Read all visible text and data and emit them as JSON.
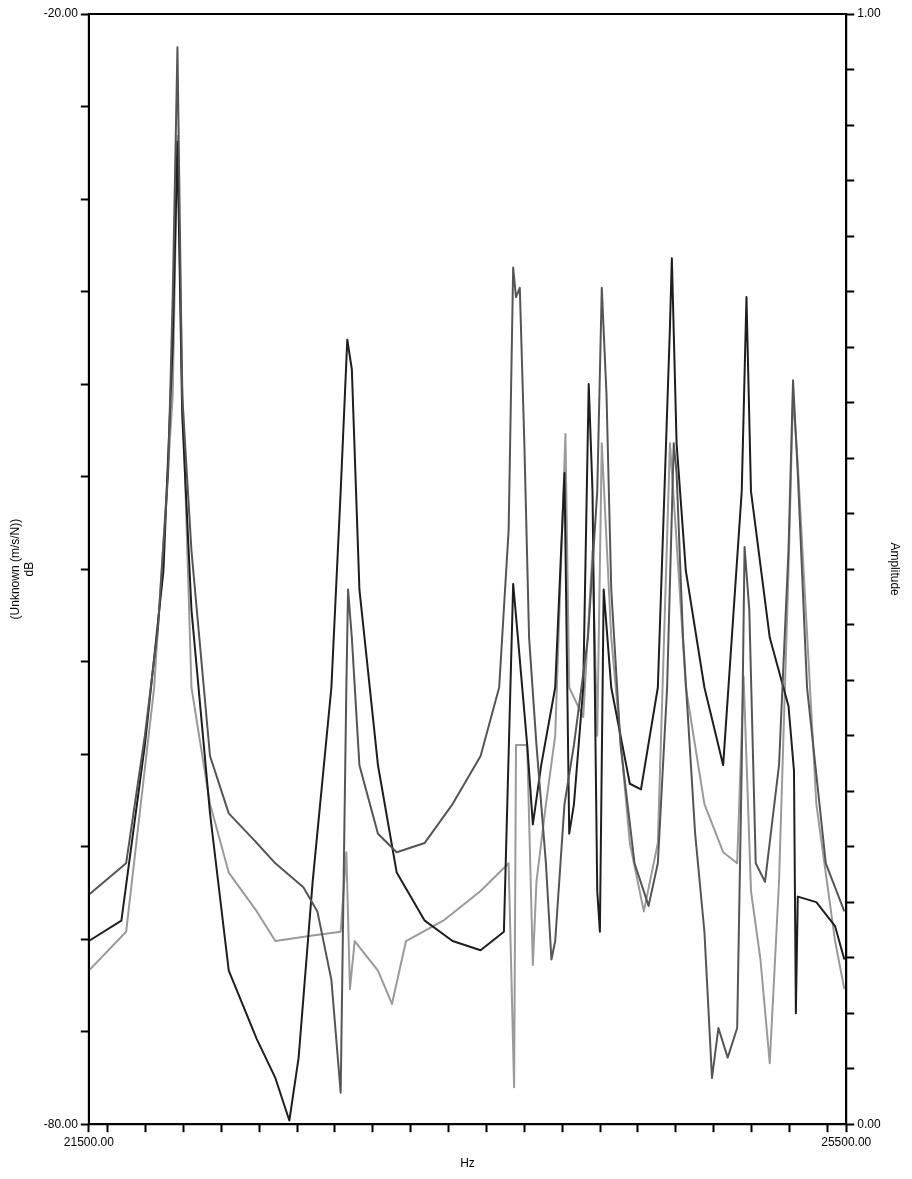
{
  "chart_data": {
    "type": "line",
    "xlabel": "Hz",
    "ylabel": "(Unknown (m/s/N))\ndB",
    "y2label": "Amplitude",
    "xlim": [
      21500,
      25500
    ],
    "xticks": [
      {
        "value": 21500,
        "label": "21500.00"
      },
      {
        "value": 21600,
        "label": null
      },
      {
        "value": 21800,
        "label": null
      },
      {
        "value": 22000,
        "label": null
      },
      {
        "value": 22200,
        "label": null
      },
      {
        "value": 22400,
        "label": null
      },
      {
        "value": 22600,
        "label": null
      },
      {
        "value": 22800,
        "label": null
      },
      {
        "value": 23000,
        "label": null
      },
      {
        "value": 23200,
        "label": null
      },
      {
        "value": 23400,
        "label": null
      },
      {
        "value": 23600,
        "label": null
      },
      {
        "value": 23800,
        "label": null
      },
      {
        "value": 24000,
        "label": null
      },
      {
        "value": 24200,
        "label": null
      },
      {
        "value": 24400,
        "label": null
      },
      {
        "value": 24600,
        "label": null
      },
      {
        "value": 24800,
        "label": null
      },
      {
        "value": 25000,
        "label": null
      },
      {
        "value": 25200,
        "label": null
      },
      {
        "value": 25400,
        "label": null
      },
      {
        "value": 25500,
        "label": "25500.00"
      }
    ],
    "ylim": [
      -80,
      -20
    ],
    "yticks": [
      {
        "value": -80,
        "label": "-80.00"
      },
      {
        "value": -75,
        "label": null
      },
      {
        "value": -70,
        "label": null
      },
      {
        "value": -65,
        "label": null
      },
      {
        "value": -60,
        "label": null
      },
      {
        "value": -55,
        "label": null
      },
      {
        "value": -50,
        "label": null
      },
      {
        "value": -45,
        "label": null
      },
      {
        "value": -40,
        "label": null
      },
      {
        "value": -35,
        "label": null
      },
      {
        "value": -30,
        "label": null
      },
      {
        "value": -25,
        "label": null
      },
      {
        "value": -20,
        "label": "-20.00"
      }
    ],
    "y2lim": [
      0,
      1
    ],
    "y2ticks": [
      {
        "value": 0,
        "label": "0.00"
      },
      {
        "value": 0.05,
        "label": null
      },
      {
        "value": 0.1,
        "label": null
      },
      {
        "value": 0.15,
        "label": null
      },
      {
        "value": 0.2,
        "label": null
      },
      {
        "value": 0.25,
        "label": null
      },
      {
        "value": 0.3,
        "label": null
      },
      {
        "value": 0.35,
        "label": null
      },
      {
        "value": 0.4,
        "label": null
      },
      {
        "value": 0.45,
        "label": null
      },
      {
        "value": 0.5,
        "label": null
      },
      {
        "value": 0.55,
        "label": null
      },
      {
        "value": 0.6,
        "label": null
      },
      {
        "value": 0.65,
        "label": null
      },
      {
        "value": 0.7,
        "label": null
      },
      {
        "value": 0.75,
        "label": null
      },
      {
        "value": 0.8,
        "label": null
      },
      {
        "value": 0.85,
        "label": null
      },
      {
        "value": 0.9,
        "label": null
      },
      {
        "value": 0.95,
        "label": null
      },
      {
        "value": 1,
        "label": "1.00"
      }
    ],
    "grid": false,
    "legend": false,
    "marker": "none",
    "line_style": "solid",
    "series": [
      {
        "color": "#555555",
        "x": [
          21500,
          21697,
          21796,
          21865,
          21919,
          21943,
          21968,
          21993,
          22042,
          22140,
          22239,
          22387,
          22485,
          22633,
          22707,
          22781,
          22830,
          22860,
          22869,
          22889,
          22929,
          23027,
          23126,
          23274,
          23421,
          23569,
          23667,
          23717,
          23741,
          23756,
          23776,
          23800,
          23825,
          23864,
          23914,
          23943,
          23963,
          24012,
          24062,
          24136,
          24185,
          24209,
          24234,
          24259,
          24308,
          24382,
          24456,
          24505,
          24554,
          24589,
          24604,
          24638,
          24702,
          24751,
          24791,
          24825,
          24874,
          24924,
          24948,
          24963,
          24988,
          25022,
          25071,
          25145,
          25195,
          25219,
          25244,
          25293,
          25392,
          25490
        ],
        "values": [
          -67.6,
          -65.9,
          -59.0,
          -53.2,
          -44.8,
          -35.3,
          -21.8,
          -40.6,
          -49.0,
          -60.1,
          -63.2,
          -64.8,
          -65.9,
          -67.2,
          -68.5,
          -72.2,
          -78.3,
          -56.4,
          -51.1,
          -53.7,
          -60.6,
          -64.3,
          -65.3,
          -64.8,
          -62.7,
          -60.1,
          -56.4,
          -47.9,
          -33.7,
          -35.3,
          -34.8,
          -43.2,
          -53.7,
          -59.5,
          -65.9,
          -71.1,
          -70.1,
          -62.7,
          -59.5,
          -53.7,
          -45.8,
          -34.8,
          -40.6,
          -51.1,
          -59.5,
          -65.9,
          -68.2,
          -65.9,
          -56.4,
          -43.2,
          -44.8,
          -53.7,
          -64.3,
          -69.6,
          -77.5,
          -74.8,
          -76.4,
          -74.8,
          -60.6,
          -48.8,
          -52.2,
          -65.9,
          -66.9,
          -60.6,
          -49.0,
          -39.8,
          -44.8,
          -56.4,
          -65.9,
          -68.5
        ]
      },
      {
        "color": "#1e1e1e",
        "x": [
          21500,
          21672,
          21796,
          21894,
          21943,
          21968,
          21993,
          22042,
          22140,
          22239,
          22387,
          22485,
          22559,
          22608,
          22682,
          22781,
          22830,
          22865,
          22889,
          22929,
          23027,
          23126,
          23274,
          23421,
          23569,
          23692,
          23741,
          23766,
          23815,
          23845,
          23889,
          23963,
          24012,
          24037,
          24062,
          24111,
          24140,
          24160,
          24185,
          24199,
          24219,
          24259,
          24357,
          24416,
          24505,
          24569,
          24579,
          24604,
          24653,
          24751,
          24850,
          24948,
          24973,
          24997,
          25096,
          25195,
          25224,
          25234,
          25244,
          25342,
          25441,
          25490
        ],
        "values": [
          -70.1,
          -69.0,
          -59.5,
          -50.1,
          -37.9,
          -26.9,
          -41.6,
          -52.2,
          -63.2,
          -71.7,
          -75.4,
          -77.5,
          -79.8,
          -76.4,
          -66.9,
          -56.4,
          -45.8,
          -37.6,
          -39.2,
          -51.1,
          -60.6,
          -66.4,
          -69.0,
          -70.1,
          -70.6,
          -69.6,
          -50.8,
          -53.7,
          -59.5,
          -63.8,
          -60.6,
          -56.4,
          -44.8,
          -64.3,
          -62.7,
          -56.4,
          -40.0,
          -45.8,
          -67.4,
          -69.6,
          -51.1,
          -56.4,
          -61.6,
          -61.9,
          -56.4,
          -36.9,
          -33.2,
          -43.2,
          -50.1,
          -56.4,
          -60.6,
          -45.8,
          -35.3,
          -45.8,
          -53.7,
          -57.4,
          -60.9,
          -74.0,
          -67.7,
          -68.0,
          -69.3,
          -71.1
        ]
      },
      {
        "color": "#9a9a9a",
        "x": [
          21500,
          21697,
          21845,
          21943,
          21968,
          21993,
          22042,
          22140,
          22239,
          22387,
          22485,
          22682,
          22830,
          22860,
          22879,
          22904,
          23027,
          23101,
          23175,
          23372,
          23569,
          23717,
          23746,
          23756,
          23815,
          23845,
          23864,
          23914,
          23963,
          24017,
          24037,
          24111,
          24160,
          24185,
          24209,
          24259,
          24357,
          24431,
          24505,
          24569,
          24604,
          24653,
          24751,
          24850,
          24924,
          24958,
          24997,
          25047,
          25096,
          25145,
          25195,
          25219,
          25244,
          25342,
          25441,
          25490
        ],
        "values": [
          -71.7,
          -69.6,
          -56.4,
          -40.6,
          -26.6,
          -39.8,
          -56.4,
          -62.7,
          -66.4,
          -68.5,
          -70.1,
          -69.8,
          -69.6,
          -65.3,
          -72.7,
          -70.1,
          -71.7,
          -73.5,
          -70.1,
          -69.0,
          -67.4,
          -65.9,
          -78.0,
          -59.5,
          -59.5,
          -71.4,
          -66.9,
          -62.7,
          -59.0,
          -42.7,
          -56.4,
          -58.0,
          -49.0,
          -59.0,
          -43.2,
          -53.7,
          -64.8,
          -68.5,
          -64.8,
          -43.2,
          -48.5,
          -56.4,
          -62.7,
          -65.3,
          -65.9,
          -55.8,
          -67.4,
          -71.1,
          -76.7,
          -66.9,
          -50.1,
          -40.6,
          -44.3,
          -62.7,
          -70.1,
          -72.7
        ]
      }
    ]
  }
}
